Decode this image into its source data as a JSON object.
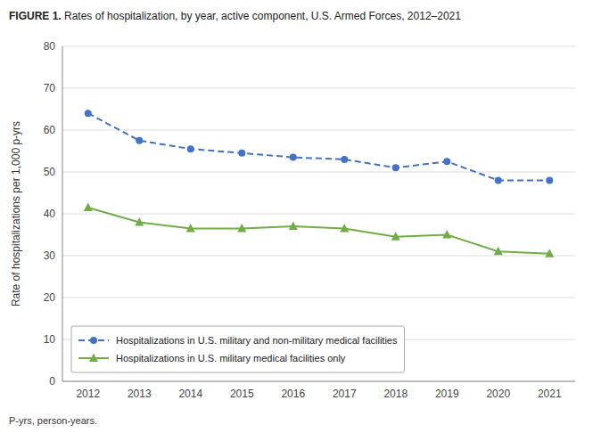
{
  "chart_data": {
    "type": "line",
    "title": "FIGURE 1. Rates of hospitalization, by year, active component, U.S. Armed Forces, 2012–2021",
    "y_label": "Rate of hospitalizations per 1,000 p-yrs",
    "x": [
      2012,
      2013,
      2014,
      2015,
      2016,
      2017,
      2018,
      2019,
      2020,
      2021
    ],
    "xlim": [
      2011.5,
      2021.5
    ],
    "xticks": [
      2012,
      2013,
      2014,
      2015,
      2016,
      2017,
      2018,
      2019,
      2020,
      2021
    ],
    "ylim": [
      0,
      80
    ],
    "yticks": [
      0,
      10,
      20,
      30,
      40,
      50,
      60,
      70,
      80
    ],
    "grid": true,
    "legend": "lower left",
    "series": [
      {
        "name": "Hospitalizations in U.S. military and non-military medical facilities",
        "color": "#4472C4",
        "marker": "circle",
        "line_style": "dashed",
        "values": [
          64.0,
          57.5,
          55.5,
          54.5,
          53.5,
          53.0,
          51.0,
          52.5,
          48.0,
          48.0
        ]
      },
      {
        "name": "Hospitalizations in U.S. military medical facilities only",
        "color": "#70AD47",
        "marker": "triangle",
        "line_style": "solid",
        "values": [
          41.5,
          38.0,
          36.5,
          36.5,
          37.0,
          36.5,
          34.5,
          35.0,
          31.0,
          30.5
        ]
      }
    ],
    "annotations": [
      "P-yrs, person-years."
    ]
  }
}
